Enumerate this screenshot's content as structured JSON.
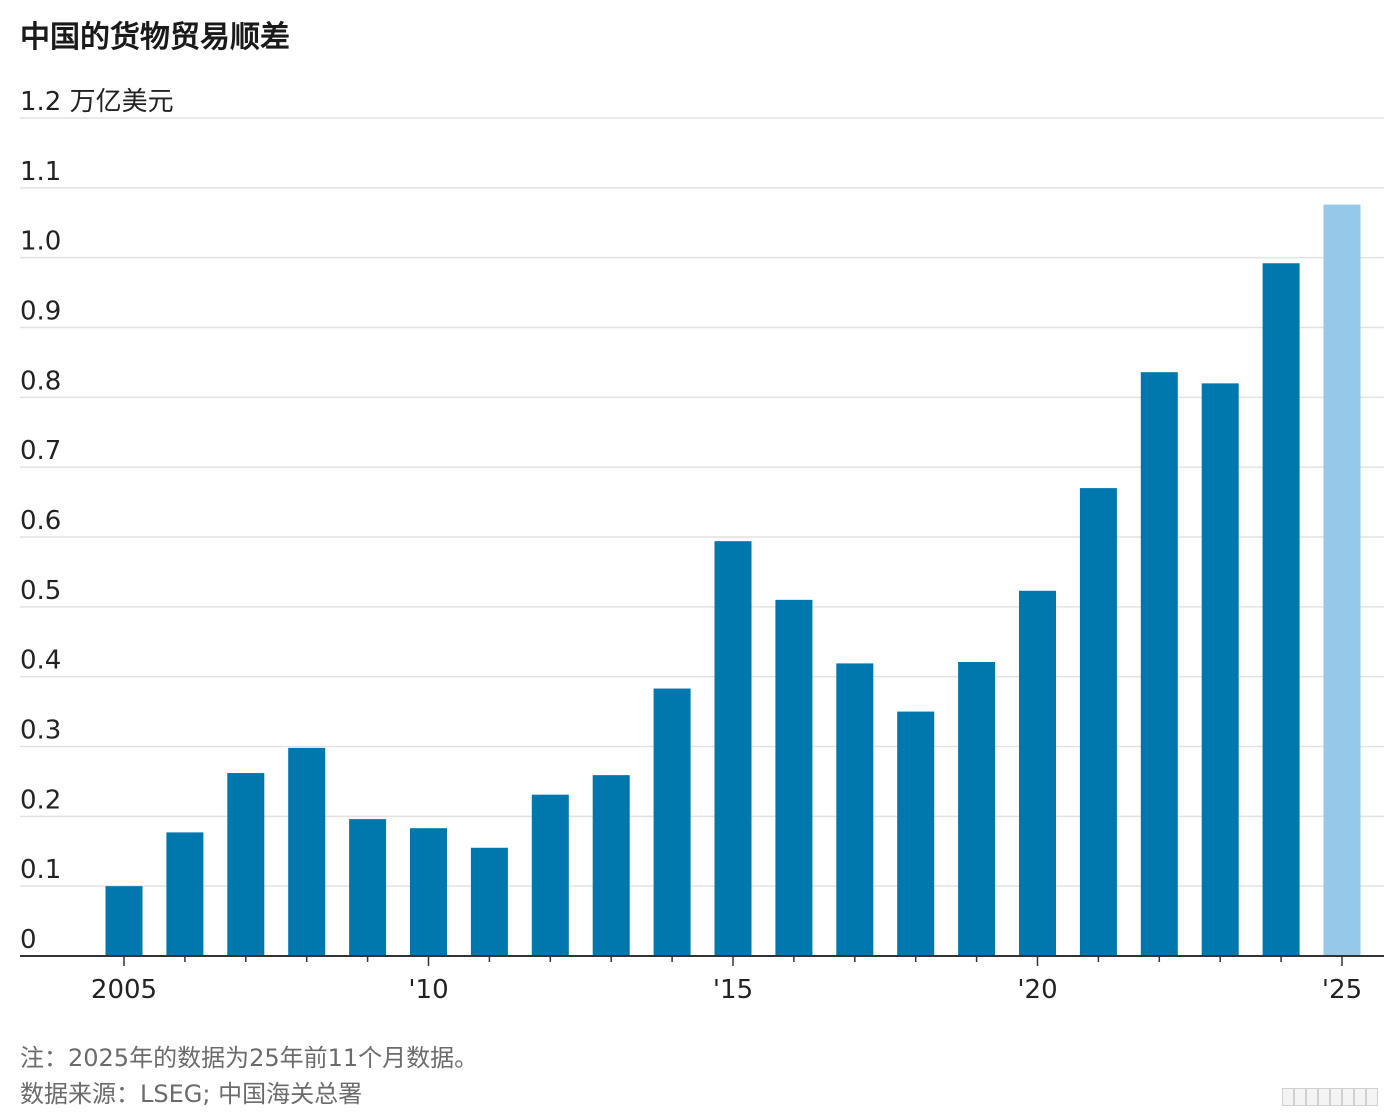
{
  "title": "中国的货物贸易顺差",
  "note": "注：2025年的数据为25年前11个月数据。",
  "source": "数据来源：LSEG; 中国海关总署",
  "colors": {
    "bar": "#0077ad",
    "highlight": "#96c9e9",
    "grid": "#e2e2e2",
    "axis": "#333333"
  },
  "chart_data": {
    "type": "bar",
    "title": "中国的货物贸易顺差",
    "unit_label": "万亿美元",
    "categories": [
      "2005",
      "2006",
      "2007",
      "2008",
      "2009",
      "2010",
      "2011",
      "2012",
      "2013",
      "2014",
      "2015",
      "2016",
      "2017",
      "2018",
      "2019",
      "2020",
      "2021",
      "2022",
      "2023",
      "2024",
      "2025"
    ],
    "values": [
      0.1,
      0.177,
      0.262,
      0.298,
      0.196,
      0.183,
      0.155,
      0.231,
      0.259,
      0.383,
      0.594,
      0.51,
      0.419,
      0.35,
      0.421,
      0.523,
      0.67,
      0.836,
      0.82,
      0.992,
      1.076
    ],
    "highlight_category": "2025",
    "ylim": [
      0,
      1.2
    ],
    "yticks": [
      "0",
      "0.1",
      "0.2",
      "0.3",
      "0.4",
      "0.5",
      "0.6",
      "0.7",
      "0.8",
      "0.9",
      "1.0",
      "1.1",
      "1.2"
    ],
    "xtick_labels": {
      "2005": "2005",
      "2010": "'10",
      "2015": "'15",
      "2020": "'20",
      "2025": "'25"
    },
    "grid": true,
    "legend": "none"
  }
}
